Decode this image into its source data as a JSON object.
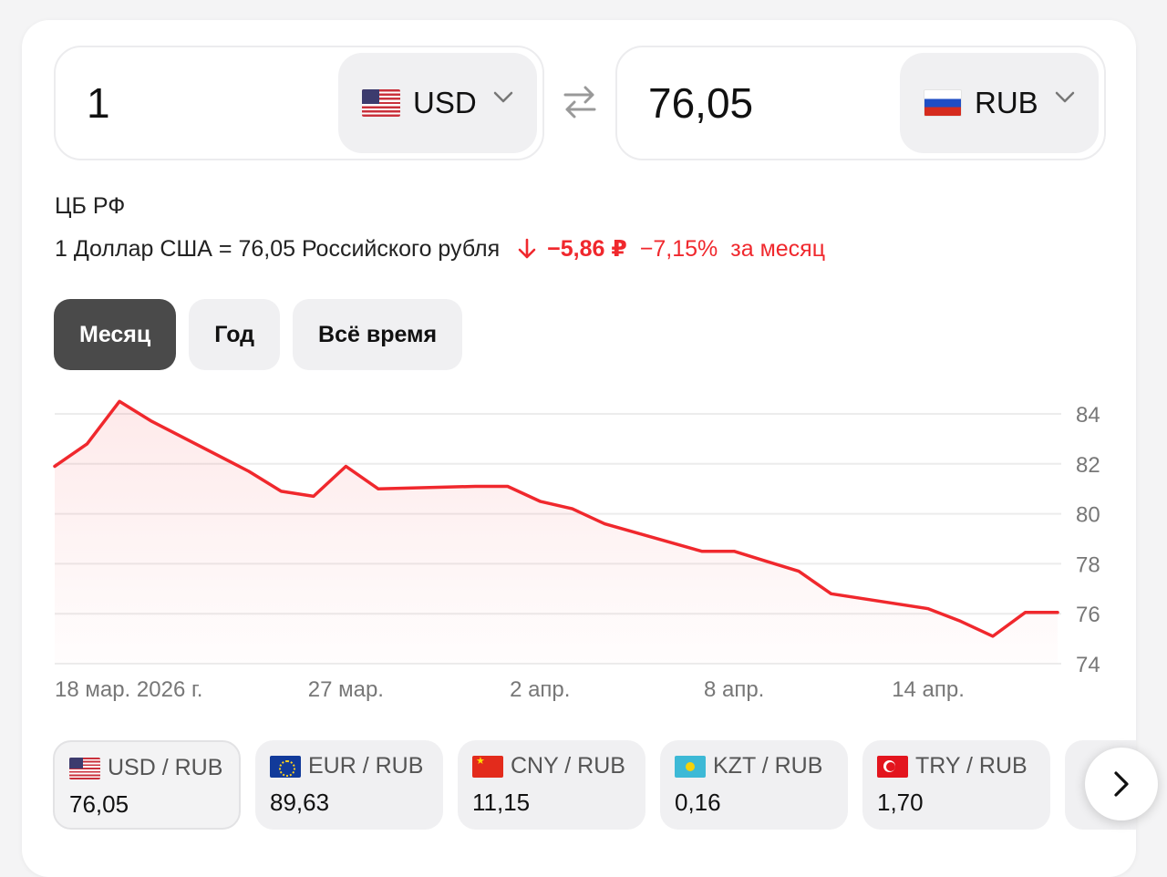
{
  "converter": {
    "from_amount": "1",
    "from_currency": "USD",
    "from_flag": "us-flag-icon",
    "to_amount": "76,05",
    "to_currency": "RUB",
    "to_flag": "ru-flag-icon"
  },
  "source": "ЦБ РФ",
  "rate": {
    "text": "1 Доллар США = 76,05 Российского рубля",
    "change_abs": "−5,86 ₽",
    "change_pct": "−7,15%",
    "change_period": "за месяц",
    "change_color": "#f0282d",
    "direction_icon": "arrow-down-icon"
  },
  "tabs": [
    {
      "label": "Месяц",
      "active": true
    },
    {
      "label": "Год",
      "active": false
    },
    {
      "label": "Всё время",
      "active": false
    }
  ],
  "chart_data": {
    "type": "line",
    "title": "",
    "xlabel": "",
    "ylabel": "",
    "ylim": [
      74,
      84
    ],
    "x_ticks": [
      "18 мар. 2026 г.",
      "27 мар.",
      "2 апр.",
      "8 апр.",
      "14 апр."
    ],
    "y_ticks": [
      "84",
      "82",
      "80",
      "78",
      "76",
      "74"
    ],
    "grid": true,
    "line_color": "#f0282d",
    "series": [
      {
        "x": [
          "2026-03-18",
          "2026-03-19",
          "2026-03-20",
          "2026-03-21",
          "2026-03-24",
          "2026-03-25",
          "2026-03-26",
          "2026-03-27",
          "2026-03-28",
          "2026-03-31",
          "2026-04-01",
          "2026-04-02",
          "2026-04-03",
          "2026-04-04",
          "2026-04-07",
          "2026-04-08",
          "2026-04-09",
          "2026-04-10",
          "2026-04-11",
          "2026-04-14",
          "2026-04-15",
          "2026-04-16",
          "2026-04-17",
          "2026-04-18"
        ],
        "values": [
          81.9,
          82.8,
          84.5,
          83.7,
          81.7,
          80.9,
          80.7,
          81.9,
          81.0,
          81.1,
          81.1,
          80.5,
          80.2,
          79.6,
          78.5,
          78.5,
          78.1,
          77.7,
          76.8,
          76.2,
          75.7,
          75.1,
          76.05,
          76.05
        ]
      }
    ]
  },
  "pairs": [
    {
      "name": "USD / RUB",
      "value": "76,05",
      "flag": "us-flag-icon"
    },
    {
      "name": "EUR / RUB",
      "value": "89,63",
      "flag": "eu-flag-icon"
    },
    {
      "name": "CNY / RUB",
      "value": "11,15",
      "flag": "cn-flag-icon"
    },
    {
      "name": "KZT / RUB",
      "value": "0,16",
      "flag": "kz-flag-icon"
    },
    {
      "name": "TRY / RUB",
      "value": "1,70",
      "flag": "tr-flag-icon"
    }
  ]
}
